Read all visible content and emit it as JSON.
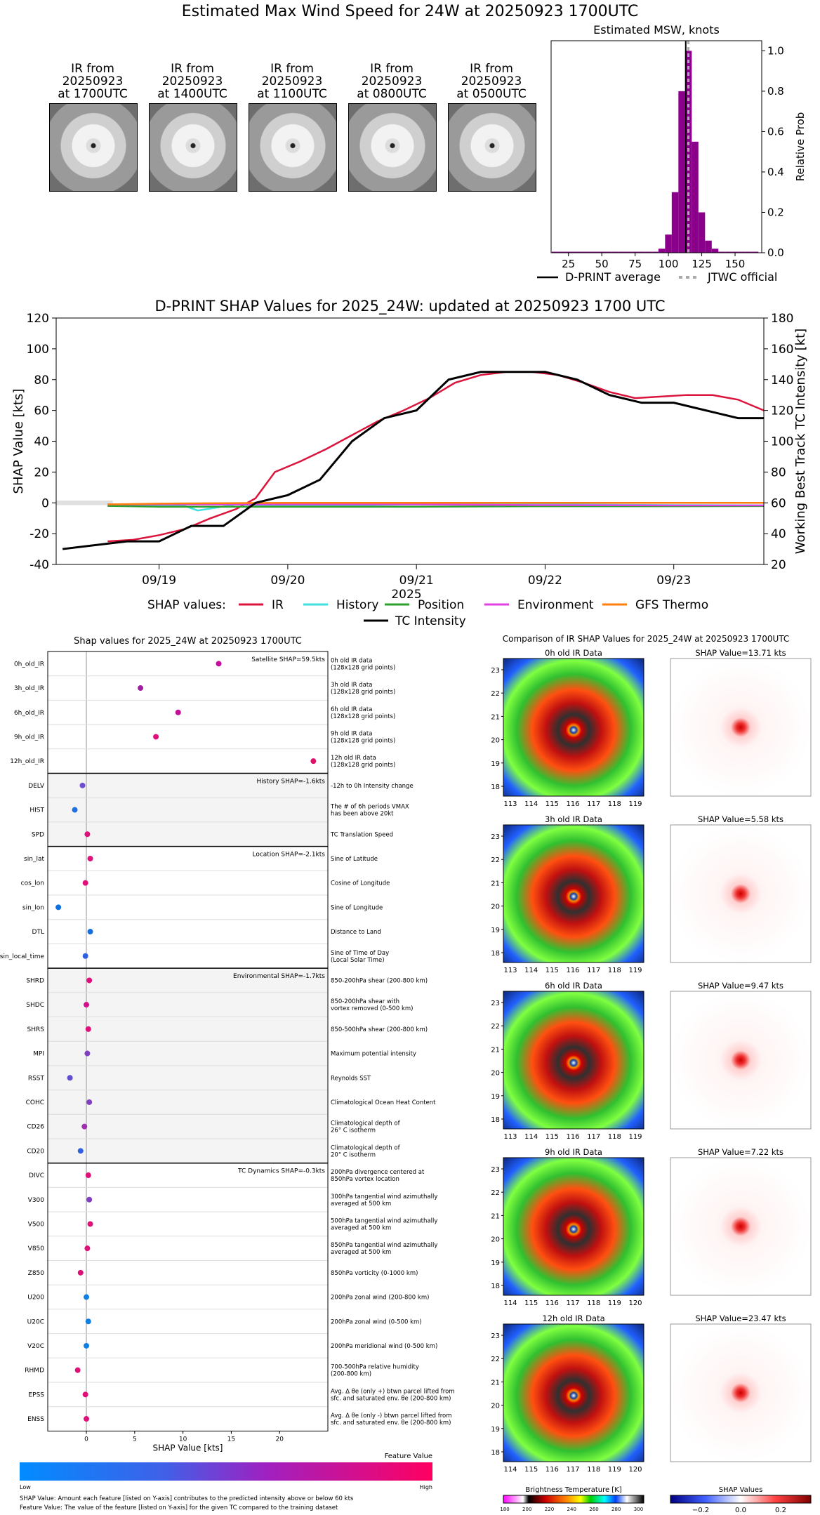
{
  "header": {
    "title": "Estimated Max Wind Speed for 24W at 20250923 1700UTC"
  },
  "thumbnails": [
    {
      "caption": "IR from\n20250923\nat 1700UTC"
    },
    {
      "caption": "IR from\n20250923\nat 1400UTC"
    },
    {
      "caption": "IR from\n20250923\nat 1100UTC"
    },
    {
      "caption": "IR from\n20250923\nat 0800UTC"
    },
    {
      "caption": "IR from\n20250923\nat 0500UTC"
    }
  ],
  "chart_data": [
    {
      "type": "bar",
      "title": "Estimated MSW, knots",
      "ylabel": "Relative Prob",
      "xlim": [
        12,
        170
      ],
      "ylim": [
        0,
        1.05
      ],
      "x_ticks": [
        25,
        50,
        75,
        100,
        125,
        150
      ],
      "y_ticks": [
        "0.0",
        "0.2",
        "0.4",
        "0.6",
        "0.8",
        "1.0"
      ],
      "bin_width": 5,
      "bins_x": [
        15,
        20,
        25,
        30,
        35,
        40,
        45,
        50,
        55,
        60,
        65,
        70,
        75,
        80,
        85,
        90,
        95,
        100,
        105,
        110,
        115,
        120,
        125,
        130,
        135,
        140,
        145,
        150,
        155,
        160,
        165
      ],
      "probabilities": [
        0.005,
        0.005,
        0.005,
        0.005,
        0.005,
        0.005,
        0.005,
        0.005,
        0.005,
        0.005,
        0.005,
        0.005,
        0.005,
        0.005,
        0.005,
        0.005,
        0.02,
        0.09,
        0.3,
        0.8,
        1.0,
        0.55,
        0.2,
        0.06,
        0.02,
        0.005,
        0.005,
        0.005,
        0.005,
        0.005,
        0.005
      ],
      "dprint_average": 113,
      "jtwc_official": 115,
      "bar_color": "#8b008b",
      "legend": [
        "D-PRINT average",
        "JTWC official"
      ]
    },
    {
      "type": "line",
      "title": "D-PRINT SHAP Values for 2025_24W: updated at 20250923 1700 UTC",
      "xlabel": "2025",
      "ylabel": "SHAP Value [kts]",
      "y2label": "Working Best Track TC Intensity [kt]",
      "x_ticks": [
        "09/19",
        "09/20",
        "09/21",
        "09/22",
        "09/23"
      ],
      "ylim": [
        -40,
        120
      ],
      "y_ticks": [
        -40,
        -20,
        0,
        20,
        40,
        60,
        80,
        100,
        120
      ],
      "y2lim": [
        20,
        180
      ],
      "y2_ticks": [
        20,
        40,
        60,
        80,
        100,
        120,
        140,
        160,
        180
      ],
      "x_range_days": [
        18.2,
        23.7
      ],
      "series": [
        {
          "name": "IR",
          "color": "#dc143c",
          "x": [
            18.6,
            18.8,
            19.0,
            19.2,
            19.4,
            19.6,
            19.75,
            19.9,
            20.1,
            20.3,
            20.5,
            20.7,
            20.9,
            21.1,
            21.3,
            21.5,
            21.7,
            21.9,
            22.1,
            22.3,
            22.5,
            22.7,
            22.9,
            23.1,
            23.3,
            23.5,
            23.7
          ],
          "y": [
            -25,
            -24,
            -21,
            -17,
            -10,
            -4,
            3,
            20,
            27,
            35,
            44,
            53,
            60,
            68,
            78,
            83,
            85,
            85,
            83,
            78,
            72,
            68,
            69,
            70,
            70,
            67,
            60
          ]
        },
        {
          "name": "History",
          "color": "#40e0e0",
          "x": [
            18.6,
            19.0,
            19.2,
            19.3,
            19.6,
            20.0,
            21.0,
            22.0,
            23.0,
            23.7
          ],
          "y": [
            -2,
            -2,
            -2,
            -5,
            -1,
            -2,
            -1,
            -1,
            -1.5,
            -1.6
          ]
        },
        {
          "name": "Position",
          "color": "#2ca02c",
          "x": [
            18.6,
            19.0,
            20.0,
            21.0,
            22.0,
            23.0,
            23.7
          ],
          "y": [
            -2,
            -2.5,
            -2.5,
            -2.5,
            -2.2,
            -2.2,
            -2.1
          ]
        },
        {
          "name": "Environment",
          "color": "#e040e0",
          "x": [
            18.6,
            19.0,
            20.0,
            21.0,
            22.0,
            23.0,
            23.7
          ],
          "y": [
            -1,
            -1,
            -1,
            -1,
            -1.5,
            -1.7,
            -1.7
          ]
        },
        {
          "name": "GFS Thermo",
          "color": "#ff7f0e",
          "x": [
            18.6,
            19.0,
            20.0,
            21.0,
            22.0,
            23.0,
            23.7
          ],
          "y": [
            -1,
            -0.5,
            0,
            0,
            0,
            0,
            0
          ]
        }
      ],
      "intensity": {
        "name": "TC Intensity",
        "color": "#000000",
        "x": [
          18.25,
          18.75,
          19.0,
          19.25,
          19.5,
          19.75,
          20.0,
          20.25,
          20.5,
          20.75,
          21.0,
          21.25,
          21.5,
          21.75,
          22.0,
          22.25,
          22.5,
          22.75,
          23.0,
          23.25,
          23.5,
          23.7
        ],
        "y": [
          30,
          35,
          35,
          45,
          45,
          60,
          65,
          75,
          100,
          115,
          120,
          140,
          145,
          145,
          145,
          140,
          130,
          125,
          125,
          120,
          115,
          115
        ]
      },
      "legend_label": "SHAP values:"
    },
    {
      "type": "scatter",
      "title": "Shap values for 2025_24W at 20250923 1700UTC",
      "xlabel": "SHAP Value [kts]",
      "xlim": [
        -4,
        25
      ],
      "x_ticks": [
        0,
        5,
        10,
        15,
        20
      ],
      "groups": [
        {
          "label": "Satellite SHAP=59.5kts",
          "features": [
            {
              "name": "0h_old_IR",
              "desc": "0h old IR data\n(128x128 grid points)",
              "value": 13.7,
              "color": "#c0109a"
            },
            {
              "name": "3h_old_IR",
              "desc": "3h old IR data\n(128x128 grid points)",
              "value": 5.6,
              "color": "#a020a0"
            },
            {
              "name": "6h_old_IR",
              "desc": "6h old IR data\n(128x128 grid points)",
              "value": 9.5,
              "color": "#c0109a"
            },
            {
              "name": "9h_old_IR",
              "desc": "9h old IR data\n(128x128 grid points)",
              "value": 7.2,
              "color": "#e0107a"
            },
            {
              "name": "12h_old_IR",
              "desc": "12h old IR data\n(128x128 grid points)",
              "value": 23.5,
              "color": "#e0106a"
            }
          ]
        },
        {
          "label": "History SHAP=-1.6kts",
          "features": [
            {
              "name": "DELV",
              "desc": "-12h to 0h Intensity change",
              "value": -0.4,
              "color": "#7050d0"
            },
            {
              "name": "HIST",
              "desc": "The # of 6h periods VMAX\nhas been above 20kt",
              "value": -1.2,
              "color": "#2070e0"
            },
            {
              "name": "SPD",
              "desc": "TC Translation Speed",
              "value": 0.1,
              "color": "#e0107a"
            }
          ]
        },
        {
          "label": "Location SHAP=-2.1kts",
          "features": [
            {
              "name": "sin_lat",
              "desc": "Sine of Latitude",
              "value": 0.4,
              "color": "#e0107a"
            },
            {
              "name": "cos_lon",
              "desc": "Cosine of Longitude",
              "value": -0.1,
              "color": "#e0107a"
            },
            {
              "name": "sin_lon",
              "desc": "Sine of Longitude",
              "value": -2.9,
              "color": "#1070e0"
            },
            {
              "name": "DTL",
              "desc": "Distance to Land",
              "value": 0.4,
              "color": "#1070e0"
            },
            {
              "name": "sin_local_time",
              "desc": "Sine of Time of Day\n(Local Solar Time)",
              "value": -0.1,
              "color": "#3060e0"
            }
          ]
        },
        {
          "label": "Environmental SHAP=-1.7kts",
          "features": [
            {
              "name": "SHRD",
              "desc": "850-200hPa shear (200-800 km)",
              "value": 0.3,
              "color": "#e0107a"
            },
            {
              "name": "SHDC",
              "desc": "850-200hPa shear with\nvortex removed (0-500 km)",
              "value": 0.0,
              "color": "#d0108a"
            },
            {
              "name": "SHRS",
              "desc": "850-500hPa shear (200-800 km)",
              "value": 0.2,
              "color": "#e0107a"
            },
            {
              "name": "MPI",
              "desc": "Maximum potential intensity",
              "value": 0.1,
              "color": "#8040c0"
            },
            {
              "name": "RSST",
              "desc": "Reynolds SST",
              "value": -1.7,
              "color": "#6050d0"
            },
            {
              "name": "COHC",
              "desc": "Climatological Ocean Heat Content",
              "value": 0.3,
              "color": "#8040c0"
            },
            {
              "name": "CD26",
              "desc": "Climatological depth of\n26° C isotherm",
              "value": -0.2,
              "color": "#a030b0"
            },
            {
              "name": "CD20",
              "desc": "Climatological depth of\n20° C isotherm",
              "value": -0.6,
              "color": "#3060e0"
            }
          ]
        },
        {
          "label": "TC Dynamics SHAP=-0.3kts",
          "features": [
            {
              "name": "DIVC",
              "desc": "200hPa divergence centered at\n850hPa vortex location",
              "value": 0.2,
              "color": "#e0107a"
            },
            {
              "name": "V300",
              "desc": "300hPa tangential wind azimuthally\naveraged at 500 km",
              "value": 0.3,
              "color": "#8040c0"
            },
            {
              "name": "V500",
              "desc": "500hPa tangential wind azimuthally\naveraged at 500 km",
              "value": 0.4,
              "color": "#e0107a"
            },
            {
              "name": "V850",
              "desc": "850hPa tangential wind azimuthally\naveraged at 500 km",
              "value": 0.1,
              "color": "#e0107a"
            },
            {
              "name": "Z850",
              "desc": "850hPa vorticity (0-1000 km)",
              "value": -0.6,
              "color": "#e0107a"
            },
            {
              "name": "U200",
              "desc": "200hPa zonal wind (200-800 km)",
              "value": 0.0,
              "color": "#1080e0"
            },
            {
              "name": "U20C",
              "desc": "200hPa zonal wind (0-500 km)",
              "value": 0.2,
              "color": "#1080e0"
            },
            {
              "name": "V20C",
              "desc": "200hPa meridional wind (0-500 km)",
              "value": 0.0,
              "color": "#1080e0"
            },
            {
              "name": "RHMD",
              "desc": "700-500hPa relative humidity\n(200-800 km)",
              "value": -0.9,
              "color": "#e0107a"
            },
            {
              "name": "EPSS",
              "desc": "Avg. Δ θe (only +) btwn parcel lifted from\nsfc. and saturated env. θe (200-800 km)",
              "value": -0.1,
              "color": "#e0107a"
            },
            {
              "name": "ENSS",
              "desc": "Avg. Δ θe (only -) btwn parcel lifted from\nsfc. and saturated env. θe (200-800 km)",
              "value": 0.0,
              "color": "#e0107a"
            }
          ]
        }
      ]
    }
  ],
  "feature_colorbar": {
    "title": "Feature Value",
    "low": "Low",
    "high": "High"
  },
  "footnotes": {
    "line1": "SHAP Value: Amount each feature [listed on Y-axis] contributes to the predicted intensity above or below 60 kts",
    "line2": "Feature Value: The value of the feature [listed on Y-axis] for the given TC compared to the training dataset"
  },
  "ir_comparison": {
    "title": "Comparison of IR SHAP Values for 2025_24W at 20250923 1700UTC",
    "panels": [
      {
        "ir_title": "0h old IR Data",
        "shap_title": "SHAP Value=13.71 kts",
        "x_ticks": [
          "113",
          "114",
          "115",
          "116",
          "117",
          "118",
          "119"
        ]
      },
      {
        "ir_title": "3h old IR Data",
        "shap_title": "SHAP Value=5.58 kts",
        "x_ticks": [
          "113",
          "114",
          "115",
          "116",
          "117",
          "118",
          "119"
        ]
      },
      {
        "ir_title": "6h old IR Data",
        "shap_title": "SHAP Value=9.47 kts",
        "x_ticks": [
          "113",
          "114",
          "115",
          "116",
          "117",
          "118",
          "119"
        ]
      },
      {
        "ir_title": "9h old IR Data",
        "shap_title": "SHAP Value=7.22 kts",
        "x_ticks": [
          "114",
          "115",
          "116",
          "117",
          "118",
          "119",
          "120"
        ]
      },
      {
        "ir_title": "12h old IR Data",
        "shap_title": "SHAP Value=23.47 kts",
        "x_ticks": [
          "114",
          "115",
          "116",
          "117",
          "118",
          "119",
          "120"
        ]
      }
    ],
    "y_ticks": [
      "18",
      "19",
      "20",
      "21",
      "22",
      "23"
    ],
    "bt_colorbar": {
      "title": "Brightness Temperature [K]",
      "ticks": [
        "180",
        "200",
        "220",
        "240",
        "260",
        "280",
        "300"
      ]
    },
    "shap_colorbar": {
      "title": "SHAP Values",
      "ticks": [
        "−0.2",
        "0.0",
        "0.2"
      ]
    }
  }
}
